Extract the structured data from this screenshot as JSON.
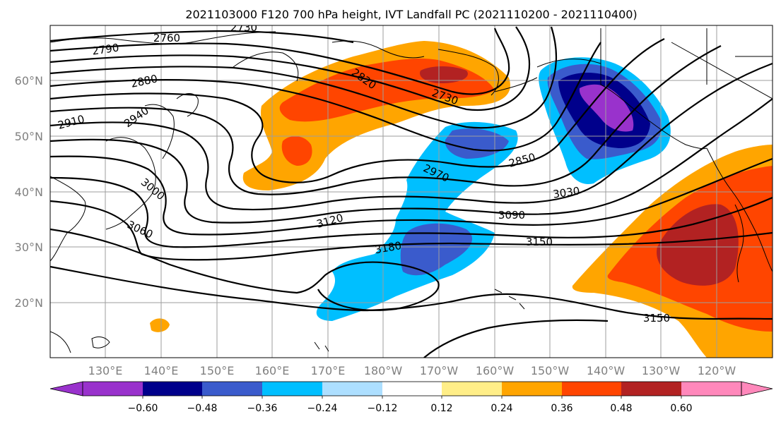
{
  "title": "2021103000 F120 700 hPa height, IVT Landfall PC (2021110200 - 2021110400)",
  "lat_labels": [
    "60°N",
    "50°N",
    "40°N",
    "30°N",
    "20°N"
  ],
  "lon_labels": [
    "130°E",
    "140°E",
    "150°E",
    "160°E",
    "170°E",
    "180°W",
    "170°W",
    "160°W",
    "150°W",
    "140°W",
    "130°W",
    "120°W"
  ],
  "colorbar": {
    "colors": [
      "#9932CC",
      "#00008B",
      "#3A5BCC",
      "#00BFFF",
      "#ADDFFF",
      "#FFFFFF",
      "#FFEE88",
      "#FFA500",
      "#FF4500",
      "#B22222",
      "#FF88BB"
    ],
    "tick_labels": [
      "−0.60",
      "−0.48",
      "−0.36",
      "−0.24",
      "−0.12",
      "0.12",
      "0.24",
      "0.36",
      "0.48",
      "0.60"
    ]
  },
  "contour_labels": [
    "2730",
    "2760",
    "2790",
    "2820",
    "2730",
    "2880",
    "2910",
    "2940",
    "2970",
    "2850",
    "3000",
    "3030",
    "3060",
    "3090",
    "3120",
    "3150",
    "3180",
    "3150"
  ]
}
